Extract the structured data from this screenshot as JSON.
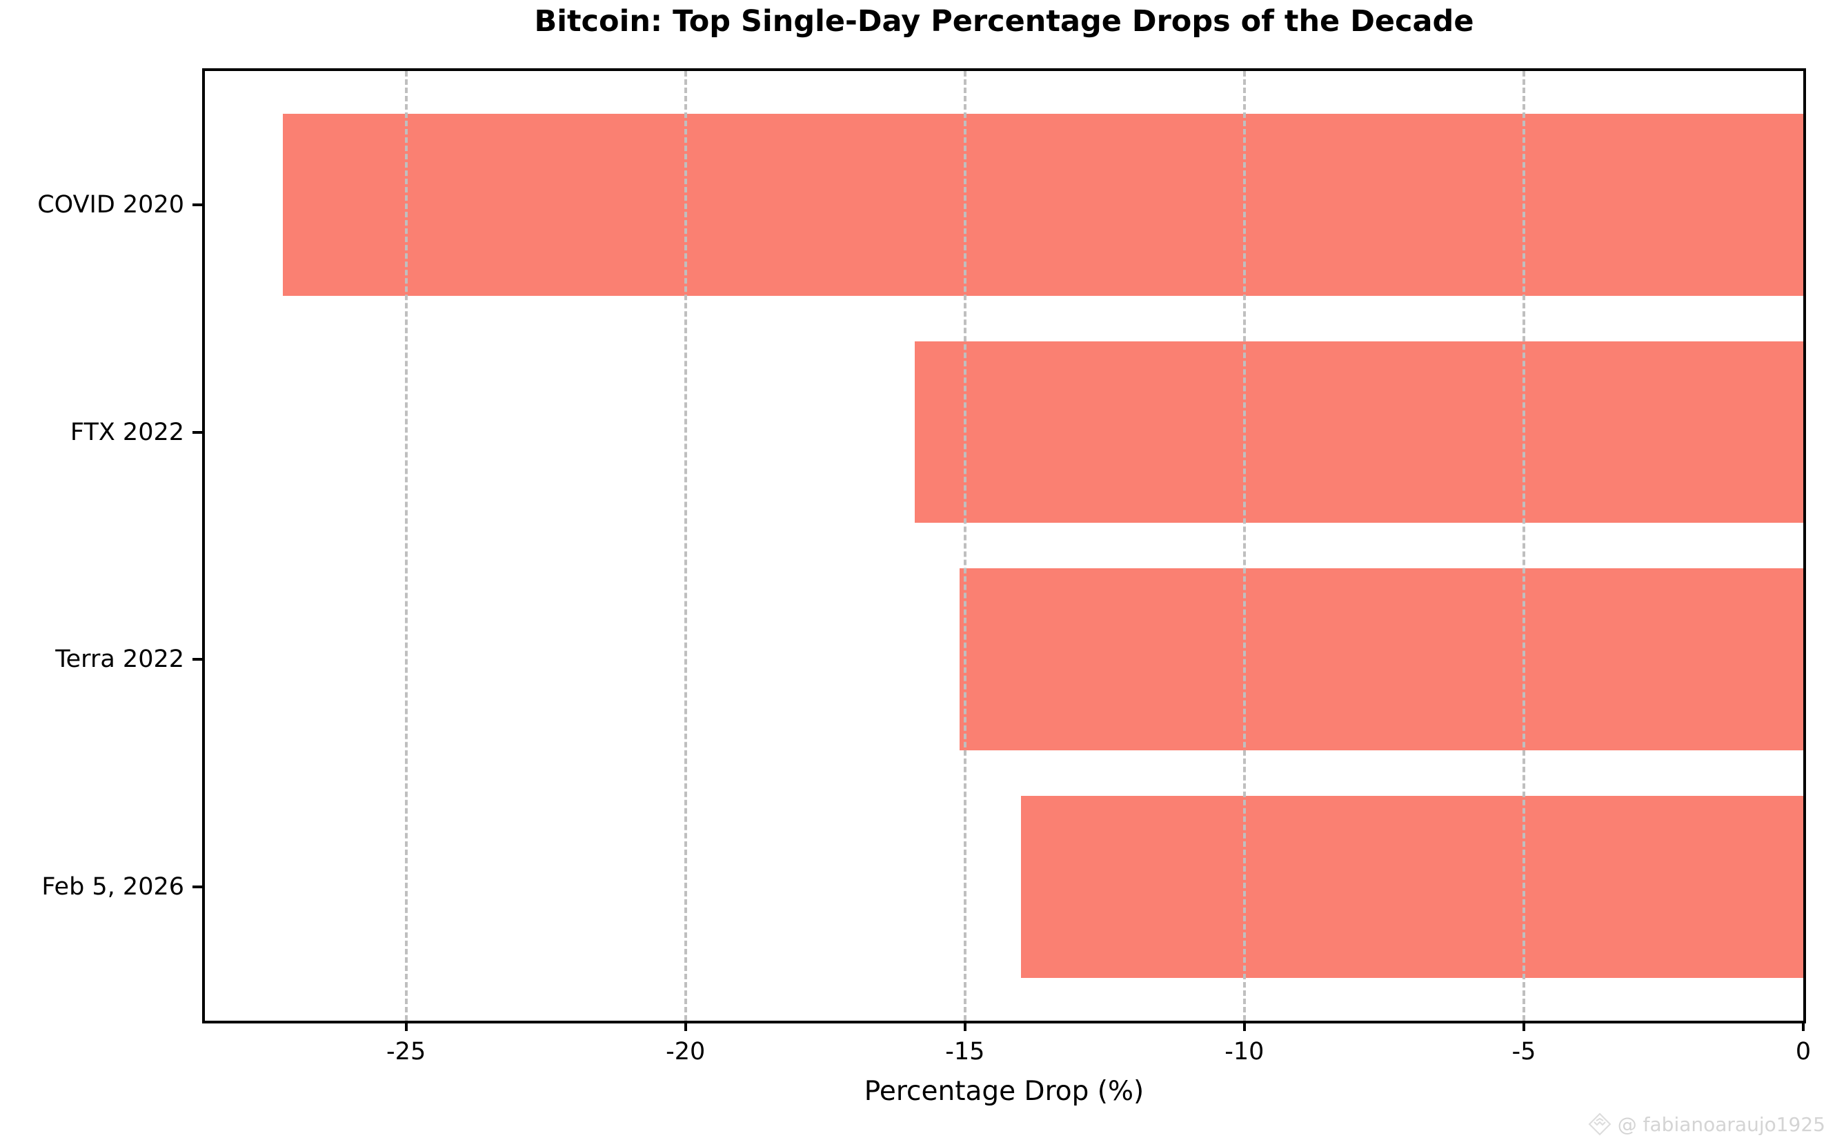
{
  "chart_data": {
    "type": "bar",
    "orientation": "horizontal",
    "title": "Bitcoin: Top Single-Day Percentage Drops of the Decade",
    "xlabel": "Percentage Drop (%)",
    "ylabel": "",
    "categories": [
      "COVID 2020",
      "FTX 2022",
      "Terra 2022",
      "Feb 5, 2026"
    ],
    "values": [
      -27.2,
      -15.9,
      -15.1,
      -14.0
    ],
    "xticks": [
      -25,
      -20,
      -15,
      -10,
      -5,
      0
    ],
    "xlim": [
      -28.6,
      0
    ],
    "grid": true,
    "grid_style": "dashed",
    "legend": "none",
    "bar_color": "#FA8072",
    "grid_color": "#bfbfbf",
    "axis_color": "#000000"
  },
  "watermark": {
    "text": "@ fabianoaraujo1925",
    "icon": "diamond-logo",
    "color": "#d4d4d4"
  }
}
